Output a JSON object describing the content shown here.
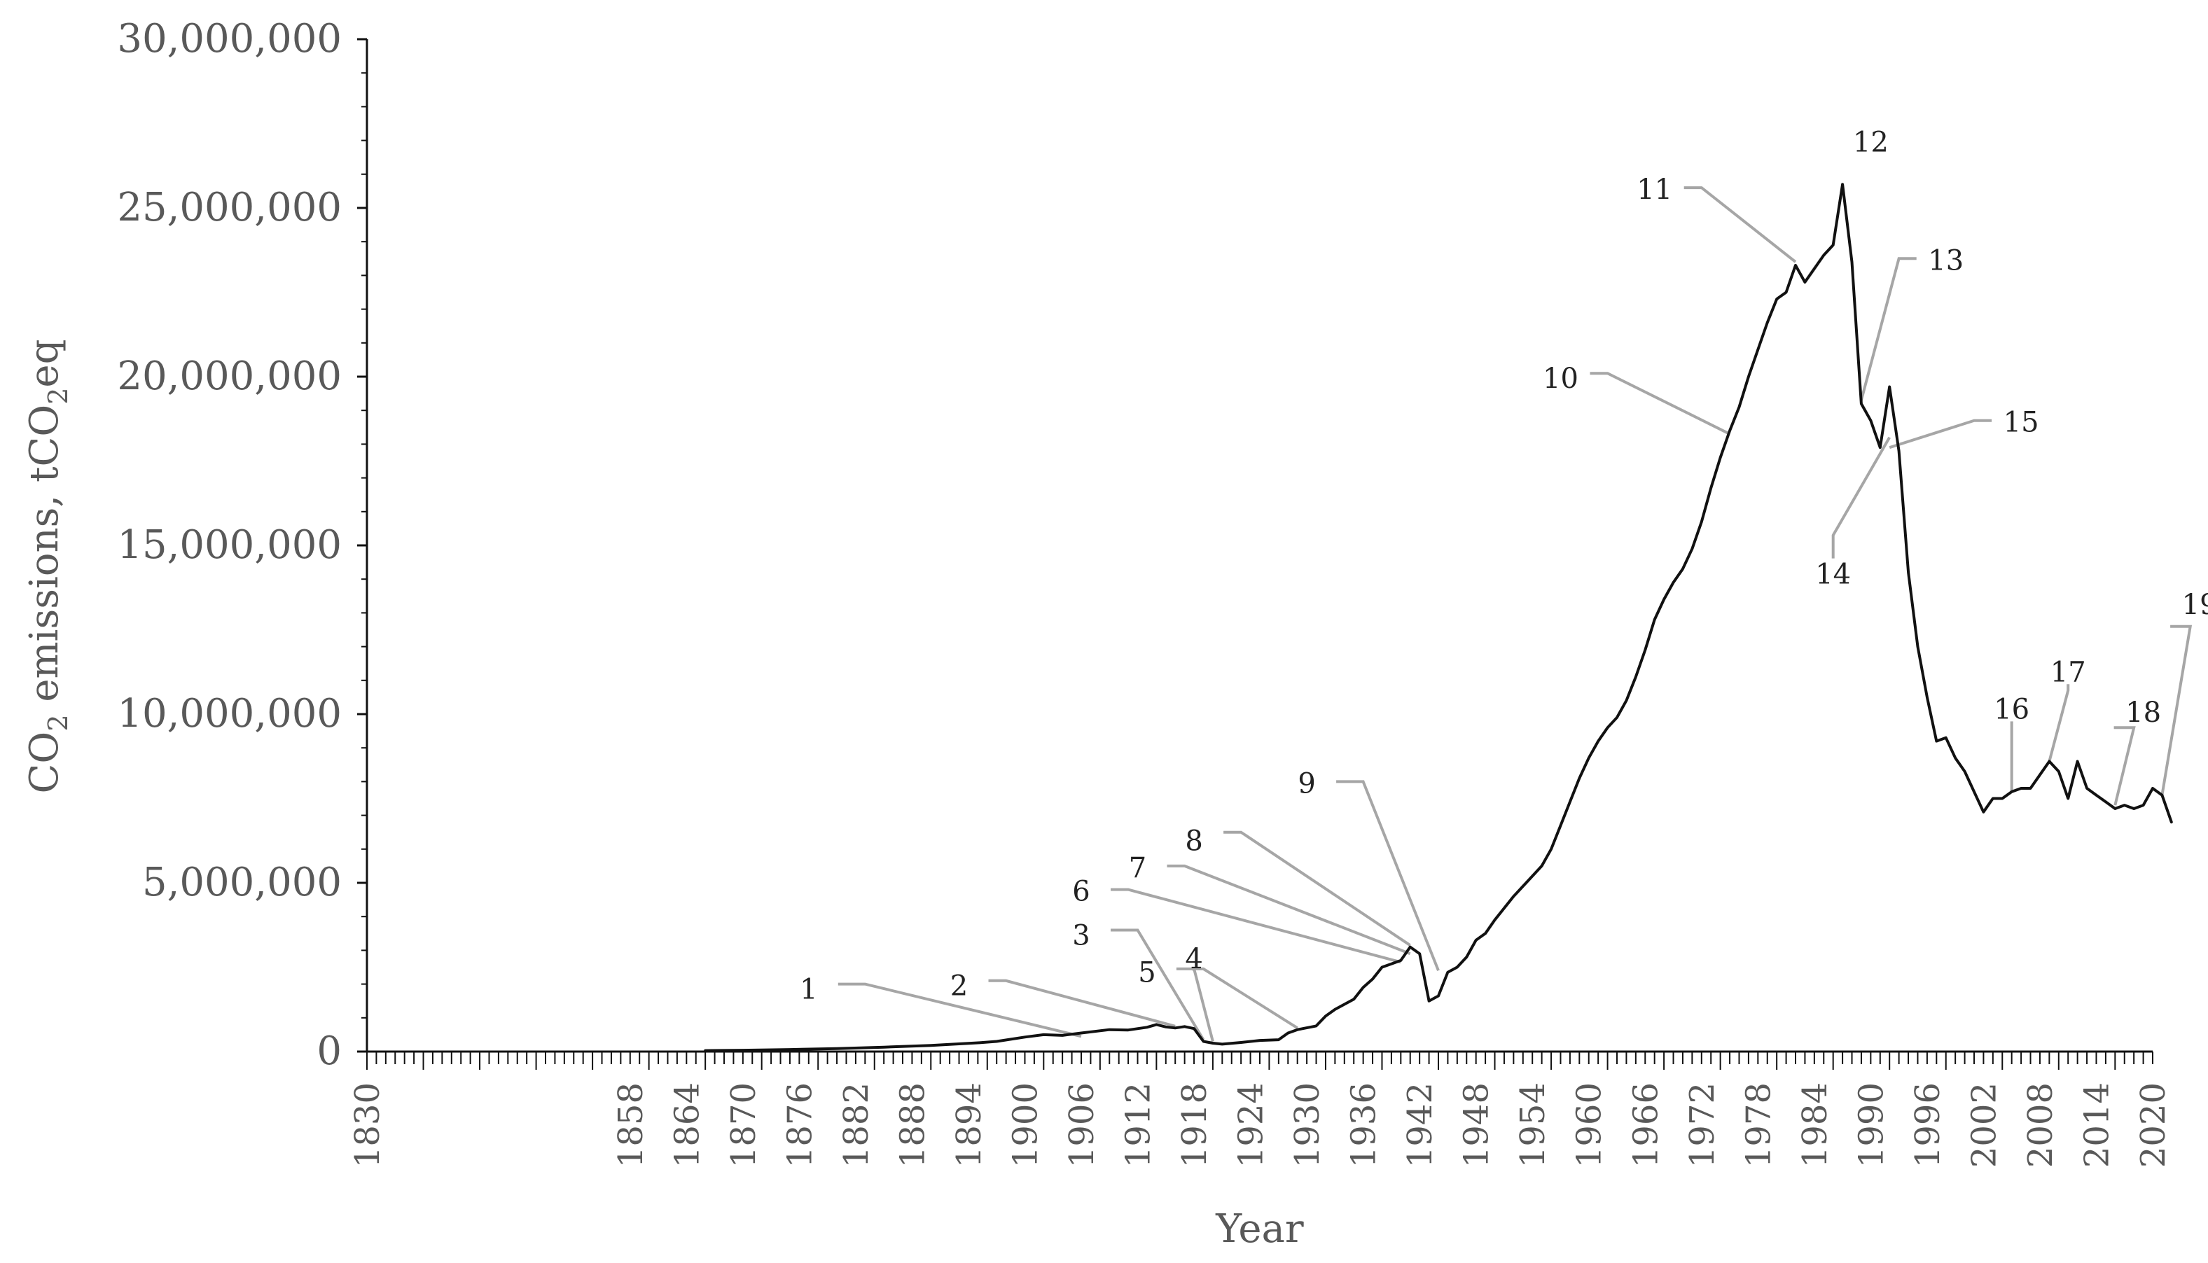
{
  "chart_data": {
    "type": "line",
    "title": "",
    "xlabel": "Year",
    "ylabel_parts": [
      "CO",
      "2",
      " emissions, tCO",
      "2",
      "eq"
    ],
    "ylim": [
      0,
      30000000
    ],
    "xlim": [
      1830,
      2020
    ],
    "y_ticks": [
      {
        "value": 0,
        "label": "0"
      },
      {
        "value": 5000000,
        "label": "5,000,000"
      },
      {
        "value": 10000000,
        "label": "10,000,000"
      },
      {
        "value": 15000000,
        "label": "15,000,000"
      },
      {
        "value": 20000000,
        "label": "20,000,000"
      },
      {
        "value": 25000000,
        "label": "25,000,000"
      },
      {
        "value": 30000000,
        "label": "30,000,000"
      }
    ],
    "x_tick_labels": [
      {
        "year": 1830,
        "label": "1830"
      },
      {
        "year": 1858,
        "label": "1858"
      },
      {
        "year": 1864,
        "label": "1864"
      },
      {
        "year": 1870,
        "label": "1870"
      },
      {
        "year": 1876,
        "label": "1876"
      },
      {
        "year": 1882,
        "label": "1882"
      },
      {
        "year": 1888,
        "label": "1888"
      },
      {
        "year": 1894,
        "label": "1894"
      },
      {
        "year": 1900,
        "label": "1900"
      },
      {
        "year": 1906,
        "label": "1906"
      },
      {
        "year": 1912,
        "label": "1912"
      },
      {
        "year": 1918,
        "label": "1918"
      },
      {
        "year": 1924,
        "label": "1924"
      },
      {
        "year": 1930,
        "label": "1930"
      },
      {
        "year": 1936,
        "label": "1936"
      },
      {
        "year": 1942,
        "label": "1942"
      },
      {
        "year": 1948,
        "label": "1948"
      },
      {
        "year": 1954,
        "label": "1954"
      },
      {
        "year": 1960,
        "label": "1960"
      },
      {
        "year": 1966,
        "label": "1966"
      },
      {
        "year": 1972,
        "label": "1972"
      },
      {
        "year": 1978,
        "label": "1978"
      },
      {
        "year": 1984,
        "label": "1984"
      },
      {
        "year": 1990,
        "label": "1990"
      },
      {
        "year": 1996,
        "label": "1996"
      },
      {
        "year": 2002,
        "label": "2002"
      },
      {
        "year": 2008,
        "label": "2008"
      },
      {
        "year": 2014,
        "label": "2014"
      },
      {
        "year": 2020,
        "label": "2020"
      }
    ],
    "series": [
      {
        "line_color": "#111111",
        "points": [
          [
            1866,
            30000
          ],
          [
            1870,
            40000
          ],
          [
            1875,
            60000
          ],
          [
            1880,
            90000
          ],
          [
            1885,
            130000
          ],
          [
            1890,
            180000
          ],
          [
            1895,
            260000
          ],
          [
            1897,
            300000
          ],
          [
            1900,
            430000
          ],
          [
            1902,
            500000
          ],
          [
            1904,
            480000
          ],
          [
            1906,
            550000
          ],
          [
            1909,
            650000
          ],
          [
            1911,
            640000
          ],
          [
            1913,
            720000
          ],
          [
            1914,
            800000
          ],
          [
            1915,
            730000
          ],
          [
            1916,
            700000
          ],
          [
            1917,
            740000
          ],
          [
            1918,
            680000
          ],
          [
            1919,
            300000
          ],
          [
            1920,
            250000
          ],
          [
            1921,
            220000
          ],
          [
            1923,
            270000
          ],
          [
            1925,
            330000
          ],
          [
            1927,
            350000
          ],
          [
            1928,
            550000
          ],
          [
            1929,
            650000
          ],
          [
            1931,
            760000
          ],
          [
            1932,
            1050000
          ],
          [
            1933,
            1250000
          ],
          [
            1935,
            1550000
          ],
          [
            1936,
            1900000
          ],
          [
            1937,
            2150000
          ],
          [
            1938,
            2500000
          ],
          [
            1939,
            2600000
          ],
          [
            1940,
            2700000
          ],
          [
            1941,
            3100000
          ],
          [
            1942,
            2900000
          ],
          [
            1943,
            1500000
          ],
          [
            1944,
            1650000
          ],
          [
            1945,
            2350000
          ],
          [
            1946,
            2500000
          ],
          [
            1947,
            2800000
          ],
          [
            1948,
            3300000
          ],
          [
            1949,
            3500000
          ],
          [
            1950,
            3900000
          ],
          [
            1952,
            4600000
          ],
          [
            1954,
            5200000
          ],
          [
            1955,
            5500000
          ],
          [
            1956,
            6000000
          ],
          [
            1957,
            6700000
          ],
          [
            1958,
            7400000
          ],
          [
            1959,
            8100000
          ],
          [
            1960,
            8700000
          ],
          [
            1961,
            9200000
          ],
          [
            1962,
            9600000
          ],
          [
            1963,
            9900000
          ],
          [
            1964,
            10400000
          ],
          [
            1965,
            11100000
          ],
          [
            1966,
            11900000
          ],
          [
            1967,
            12800000
          ],
          [
            1968,
            13400000
          ],
          [
            1969,
            13900000
          ],
          [
            1970,
            14300000
          ],
          [
            1971,
            14900000
          ],
          [
            1972,
            15700000
          ],
          [
            1973,
            16700000
          ],
          [
            1974,
            17600000
          ],
          [
            1975,
            18400000
          ],
          [
            1976,
            19100000
          ],
          [
            1977,
            20000000
          ],
          [
            1978,
            20800000
          ],
          [
            1979,
            21600000
          ],
          [
            1980,
            22300000
          ],
          [
            1981,
            22500000
          ],
          [
            1982,
            23300000
          ],
          [
            1983,
            22800000
          ],
          [
            1984,
            23200000
          ],
          [
            1985,
            23600000
          ],
          [
            1986,
            23900000
          ],
          [
            1987,
            25700000
          ],
          [
            1988,
            23400000
          ],
          [
            1989,
            19200000
          ],
          [
            1990,
            18700000
          ],
          [
            1991,
            17900000
          ],
          [
            1992,
            19700000
          ],
          [
            1993,
            17800000
          ],
          [
            1994,
            14200000
          ],
          [
            1995,
            12000000
          ],
          [
            1996,
            10500000
          ],
          [
            1997,
            9200000
          ],
          [
            1998,
            9300000
          ],
          [
            1999,
            8700000
          ],
          [
            2000,
            8300000
          ],
          [
            2001,
            7700000
          ],
          [
            2002,
            7100000
          ],
          [
            2003,
            7500000
          ],
          [
            2004,
            7500000
          ],
          [
            2005,
            7700000
          ],
          [
            2006,
            7800000
          ],
          [
            2007,
            7800000
          ],
          [
            2008,
            8200000
          ],
          [
            2009,
            8600000
          ],
          [
            2010,
            8300000
          ],
          [
            2011,
            7500000
          ],
          [
            2012,
            8600000
          ],
          [
            2013,
            7800000
          ],
          [
            2014,
            7600000
          ],
          [
            2015,
            7400000
          ],
          [
            2016,
            7200000
          ],
          [
            2017,
            7300000
          ],
          [
            2018,
            7200000
          ],
          [
            2019,
            7300000
          ],
          [
            2020,
            7800000
          ],
          [
            2021,
            7600000
          ],
          [
            2022,
            6800000
          ]
        ]
      }
    ],
    "annotations": [
      {
        "label": "1",
        "year": 1906,
        "value": 450000,
        "label_year": 1877,
        "label_value": 1900000,
        "elbow_year": 1883,
        "elbow_value": 2000000
      },
      {
        "label": "2",
        "year": 1916,
        "value": 750000,
        "label_year": 1893,
        "label_value": 2000000,
        "elbow_year": 1898,
        "elbow_value": 2100000
      },
      {
        "label": "3",
        "year": 1919,
        "value": 350000,
        "label_year": 1906,
        "label_value": 3500000,
        "elbow_year": 1912,
        "elbow_value": 3600000
      },
      {
        "label": "4",
        "year": 1920,
        "value": 300000,
        "label_year": 1918,
        "label_value": 2800000,
        "elbow_year": 1918,
        "elbow_value": 2450000
      },
      {
        "label": "5",
        "year": 1929,
        "value": 700000,
        "label_year": 1913,
        "label_value": 2400000,
        "elbow_year": 1919,
        "elbow_value": 2450000
      },
      {
        "label": "6",
        "year": 1940,
        "value": 2650000,
        "label_year": 1906,
        "label_value": 4800000,
        "elbow_year": 1911,
        "elbow_value": 4800000
      },
      {
        "label": "7",
        "year": 1941,
        "value": 2900000,
        "label_year": 1912,
        "label_value": 5500000,
        "elbow_year": 1917,
        "elbow_value": 5500000
      },
      {
        "label": "8",
        "year": 1941,
        "value": 3150000,
        "label_year": 1918,
        "label_value": 6300000,
        "elbow_year": 1923,
        "elbow_value": 6500000
      },
      {
        "label": "9",
        "year": 1944,
        "value": 2400000,
        "label_year": 1930,
        "label_value": 8000000,
        "elbow_year": 1936,
        "elbow_value": 8000000
      },
      {
        "label": "10",
        "year": 1975,
        "value": 18300000,
        "label_year": 1957,
        "label_value": 20000000,
        "elbow_year": 1962,
        "elbow_value": 20100000
      },
      {
        "label": "11",
        "year": 1982,
        "value": 23400000,
        "label_year": 1967,
        "label_value": 25600000,
        "elbow_year": 1972,
        "elbow_value": 25600000
      },
      {
        "label": "12",
        "year": null,
        "value": null,
        "label_year": 1990,
        "label_value": 27000000,
        "elbow_year": null,
        "elbow_value": null
      },
      {
        "label": "13",
        "year": 1989,
        "value": 19300000,
        "label_year": 1998,
        "label_value": 23500000,
        "elbow_year": 1993,
        "elbow_value": 23500000
      },
      {
        "label": "14",
        "year": 1992,
        "value": 18200000,
        "label_year": 1986,
        "label_value": 14200000,
        "elbow_year": 1986,
        "elbow_value": 15300000
      },
      {
        "label": "15",
        "year": 1992,
        "value": 17900000,
        "label_year": 2006,
        "label_value": 18700000,
        "elbow_year": 2001,
        "elbow_value": 18700000
      },
      {
        "label": "16",
        "year": 2005,
        "value": 7700000,
        "label_year": 2005,
        "label_value": 10200000,
        "elbow_year": 2005,
        "elbow_value": 9600000
      },
      {
        "label": "17",
        "year": 2009,
        "value": 8600000,
        "label_year": 2011,
        "label_value": 11300000,
        "elbow_year": 2011,
        "elbow_value": 10700000
      },
      {
        "label": "18",
        "year": 2016,
        "value": 7300000,
        "label_year": 2019,
        "label_value": 10100000,
        "elbow_year": 2018,
        "elbow_value": 9600000
      },
      {
        "label": "19",
        "year": 2021,
        "value": 7600000,
        "label_year": 2025,
        "label_value": 13300000,
        "elbow_year": 2024,
        "elbow_value": 12600000
      }
    ],
    "legend": "none",
    "grid": false,
    "colors": {
      "line": "#111111",
      "callout_line": "#a6a6a6",
      "axis": "#111111",
      "text": "#595959"
    }
  }
}
